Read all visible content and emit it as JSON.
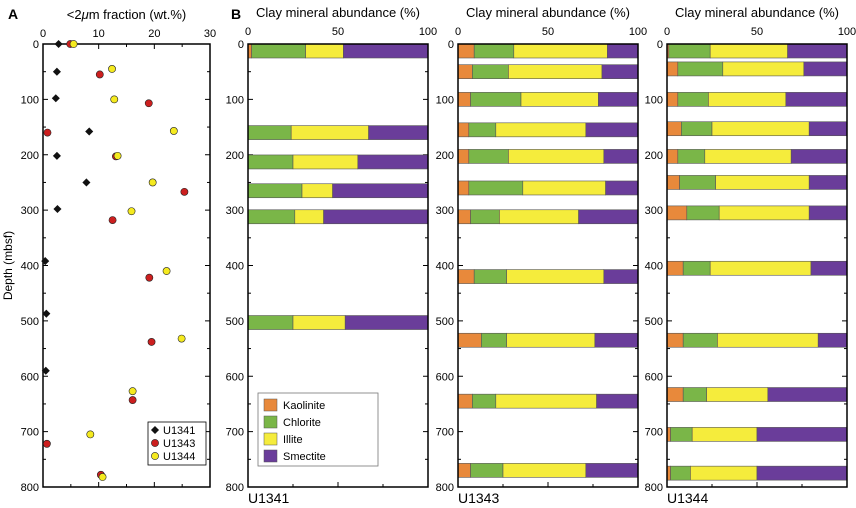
{
  "chart_data": [
    {
      "type": "scatter",
      "panel_letter": "A",
      "title_prefix": "<2",
      "title_mu": "μ",
      "title_suffix": "m fraction (wt.%)",
      "ylabel": "Depth (mbsf)",
      "xlim": [
        0,
        30
      ],
      "ylim": [
        0,
        800
      ],
      "xticks": [
        0,
        10,
        20,
        30
      ],
      "yticks": [
        0,
        100,
        200,
        300,
        400,
        500,
        600,
        700,
        800
      ],
      "legend_position": "bottom-right",
      "series": [
        {
          "name": "U1341",
          "marker": "diamond",
          "color": "#111111",
          "points": [
            [
              2.8,
              0
            ],
            [
              2.5,
              50
            ],
            [
              2.3,
              98
            ],
            [
              8.3,
              158
            ],
            [
              2.5,
              202
            ],
            [
              7.8,
              250
            ],
            [
              2.6,
              298
            ],
            [
              0.4,
              392
            ],
            [
              0.6,
              487
            ],
            [
              0.5,
              590
            ]
          ]
        },
        {
          "name": "U1343",
          "marker": "circle",
          "color": "#cc1f1f",
          "points": [
            [
              4.9,
              0
            ],
            [
              10.2,
              55
            ],
            [
              19.0,
              107
            ],
            [
              0.8,
              160
            ],
            [
              13.1,
              203
            ],
            [
              25.4,
              267
            ],
            [
              12.5,
              318
            ],
            [
              19.1,
              422
            ],
            [
              19.5,
              538
            ],
            [
              16.1,
              643
            ],
            [
              0.7,
              722
            ],
            [
              10.4,
              778
            ]
          ]
        },
        {
          "name": "U1344",
          "marker": "circle",
          "color": "#f5ea1f",
          "points": [
            [
              5.5,
              0
            ],
            [
              12.4,
              45
            ],
            [
              12.8,
              100
            ],
            [
              23.5,
              157
            ],
            [
              13.4,
              202
            ],
            [
              19.7,
              250
            ],
            [
              15.9,
              302
            ],
            [
              22.2,
              410
            ],
            [
              24.9,
              532
            ],
            [
              16.1,
              627
            ],
            [
              8.5,
              705
            ],
            [
              10.7,
              782
            ]
          ]
        }
      ]
    },
    {
      "type": "bar",
      "panel_letter": "B",
      "stacked": true,
      "orientation": "horizontal",
      "title": "Clay mineral abundance (%)",
      "xlim": [
        0,
        100
      ],
      "xticks": [
        0,
        50,
        100
      ],
      "ylim": [
        0,
        800
      ],
      "yticks": [
        0,
        100,
        200,
        300,
        400,
        500,
        600,
        700,
        800
      ],
      "components": [
        "Kaolinite",
        "Chlorite",
        "Illite",
        "Smectite"
      ],
      "colors": [
        "#e8893b",
        "#7ab648",
        "#f5ec3c",
        "#6a3d9a"
      ],
      "legend_position": "bottom-left of U1341 panel",
      "sites": [
        {
          "site": "U1341",
          "samples": [
            {
              "depth": 0,
              "values": [
                2,
                30,
                21,
                47
              ]
            },
            {
              "depth": 160,
              "values": [
                0,
                24,
                43,
                33
              ]
            },
            {
              "depth": 213,
              "values": [
                0,
                25,
                36,
                39
              ]
            },
            {
              "depth": 265,
              "values": [
                0,
                30,
                17,
                53
              ]
            },
            {
              "depth": 312,
              "values": [
                0,
                26,
                16,
                58
              ]
            },
            {
              "depth": 503,
              "values": [
                0,
                25,
                29,
                46
              ]
            }
          ]
        },
        {
          "site": "U1343",
          "samples": [
            {
              "depth": 0,
              "values": [
                9,
                22,
                52,
                17
              ]
            },
            {
              "depth": 50,
              "values": [
                8,
                20,
                52,
                20
              ]
            },
            {
              "depth": 100,
              "values": [
                7,
                28,
                43,
                22
              ]
            },
            {
              "depth": 155,
              "values": [
                6,
                15,
                50,
                29
              ]
            },
            {
              "depth": 203,
              "values": [
                6,
                22,
                53,
                19
              ]
            },
            {
              "depth": 260,
              "values": [
                6,
                30,
                46,
                18
              ]
            },
            {
              "depth": 312,
              "values": [
                7,
                16,
                44,
                33
              ]
            },
            {
              "depth": 420,
              "values": [
                9,
                18,
                54,
                19
              ]
            },
            {
              "depth": 535,
              "values": [
                13,
                14,
                49,
                24
              ]
            },
            {
              "depth": 645,
              "values": [
                8,
                13,
                56,
                23
              ]
            },
            {
              "depth": 770,
              "values": [
                7,
                18,
                46,
                29
              ]
            }
          ]
        },
        {
          "site": "U1344",
          "samples": [
            {
              "depth": 0,
              "values": [
                1,
                23,
                43,
                33
              ]
            },
            {
              "depth": 45,
              "values": [
                6,
                25,
                45,
                24
              ]
            },
            {
              "depth": 100,
              "values": [
                6,
                17,
                43,
                34
              ]
            },
            {
              "depth": 153,
              "values": [
                8,
                17,
                54,
                21
              ]
            },
            {
              "depth": 203,
              "values": [
                6,
                15,
                48,
                31
              ]
            },
            {
              "depth": 250,
              "values": [
                7,
                20,
                52,
                21
              ]
            },
            {
              "depth": 305,
              "values": [
                11,
                18,
                50,
                21
              ]
            },
            {
              "depth": 405,
              "values": [
                9,
                15,
                56,
                20
              ]
            },
            {
              "depth": 535,
              "values": [
                9,
                19,
                56,
                16
              ]
            },
            {
              "depth": 633,
              "values": [
                9,
                13,
                34,
                44
              ]
            },
            {
              "depth": 705,
              "values": [
                2,
                12,
                36,
                50
              ]
            },
            {
              "depth": 775,
              "values": [
                2,
                11,
                37,
                50
              ]
            }
          ]
        }
      ]
    }
  ]
}
